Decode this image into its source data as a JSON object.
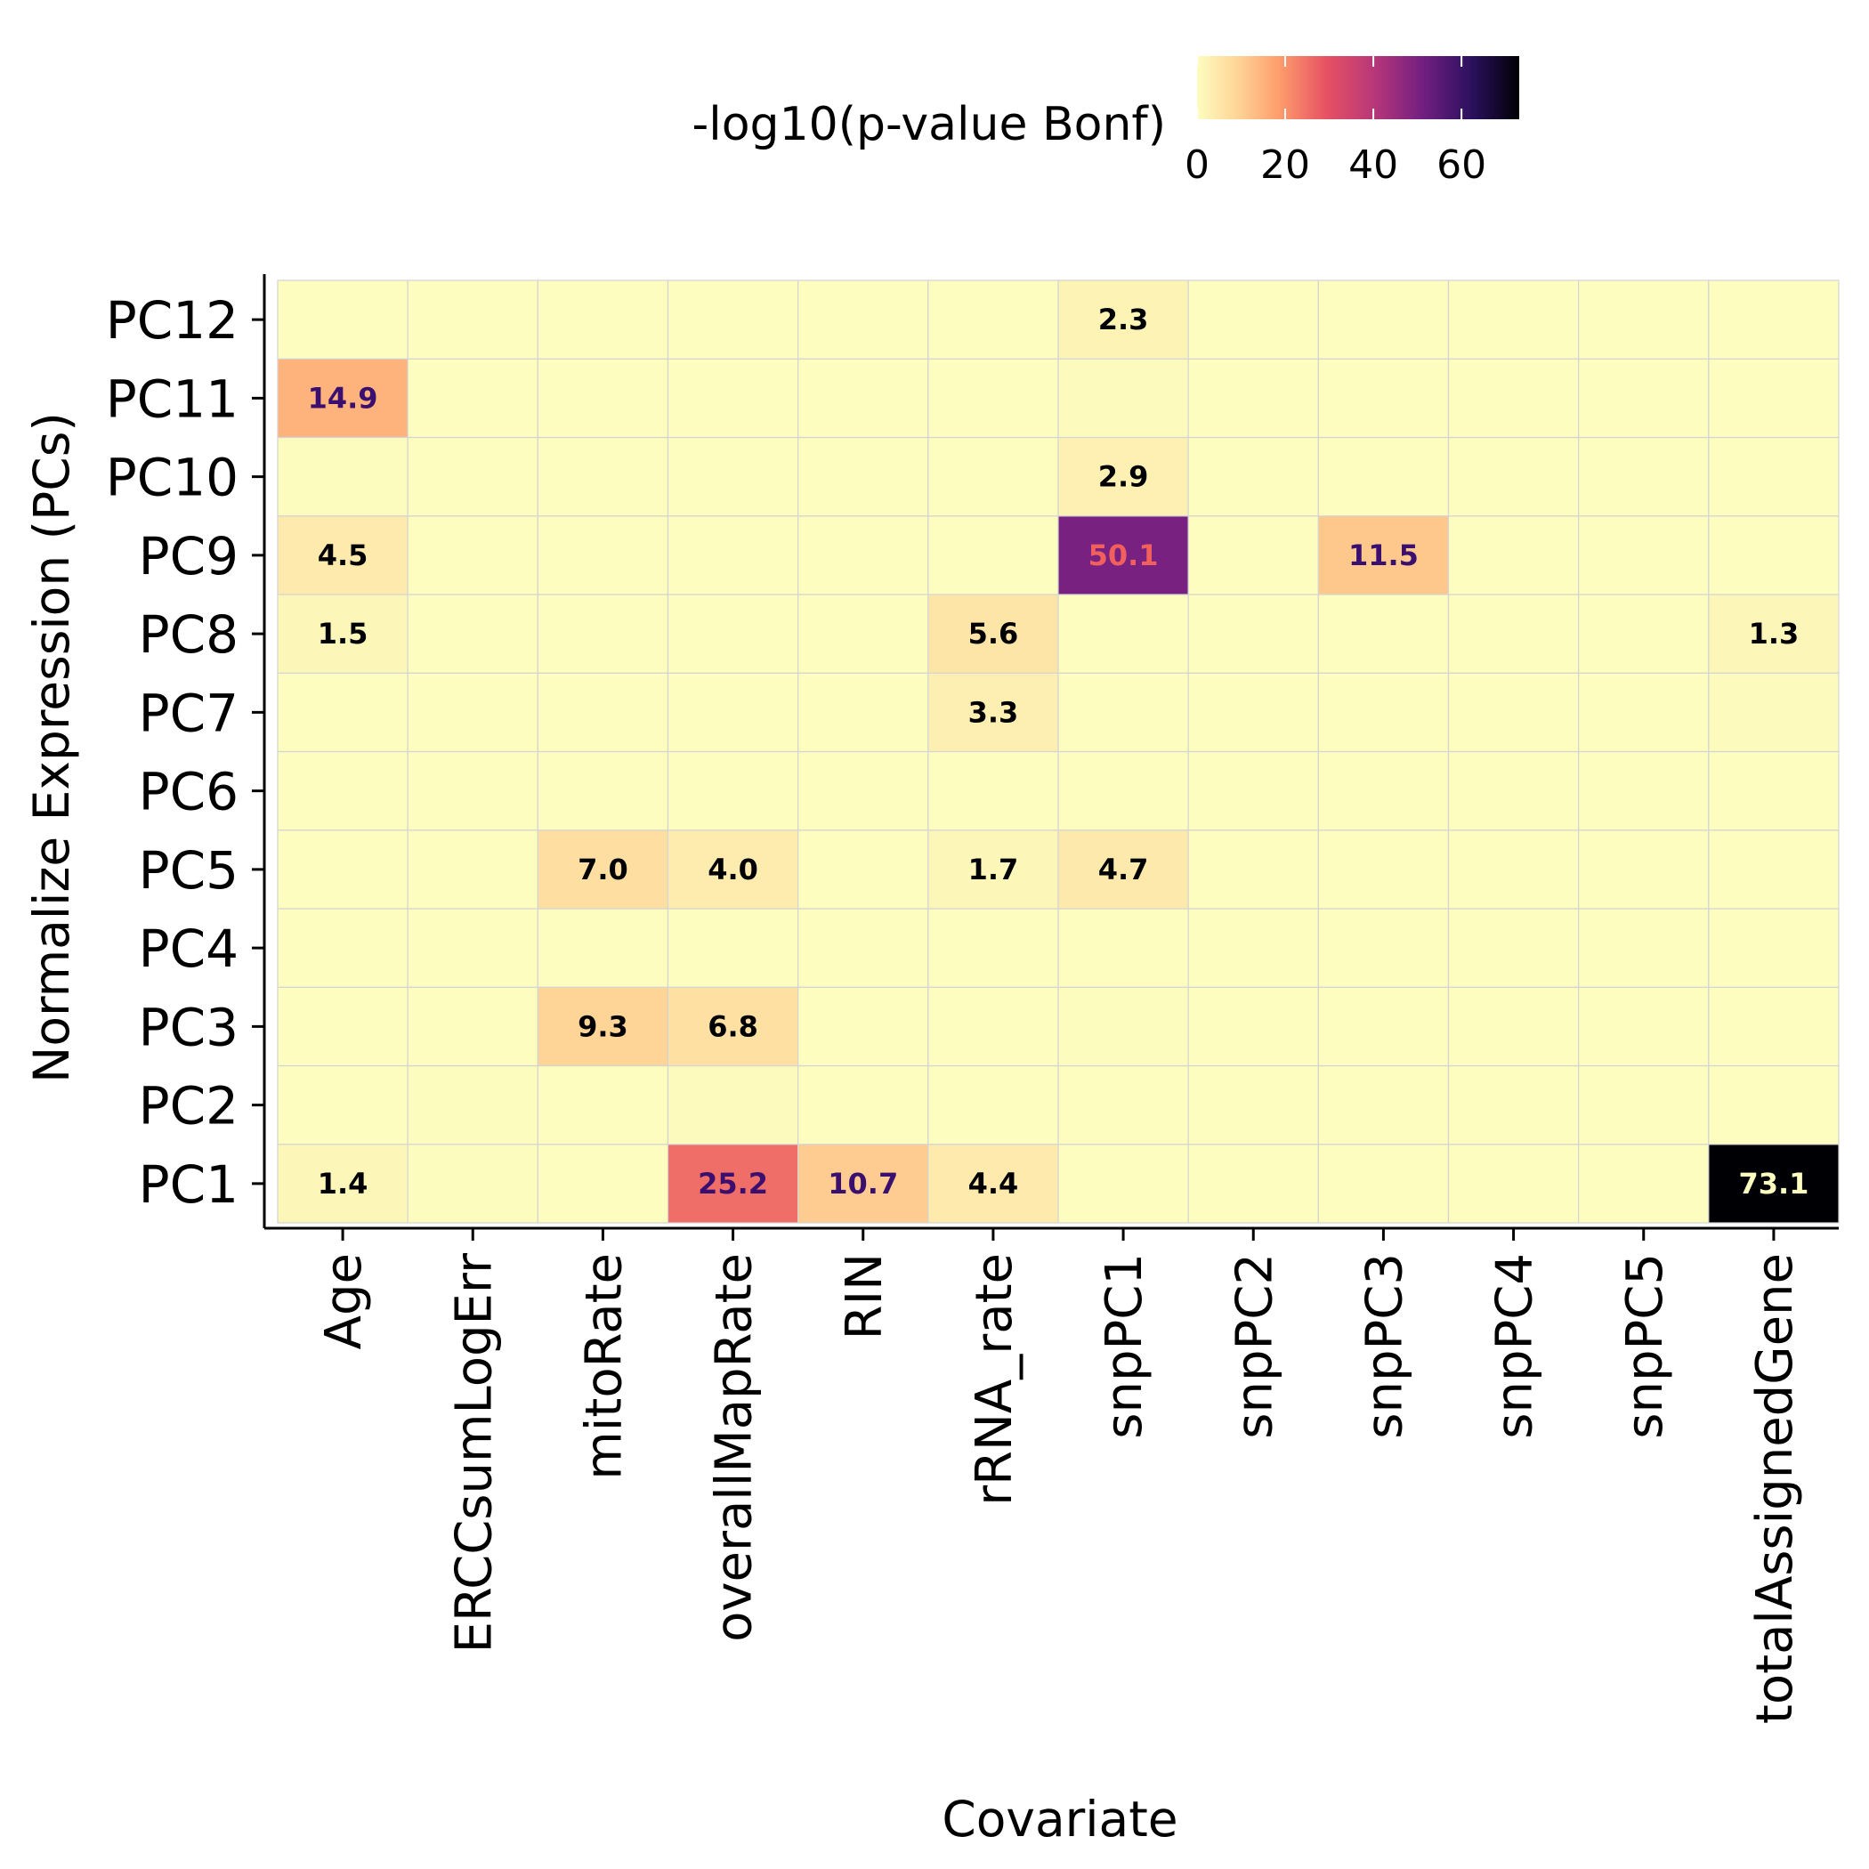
{
  "chart_data": {
    "type": "heatmap",
    "xlabel": "Covariate",
    "ylabel": "Normalize Expression (PCs)",
    "x_categories": [
      "Age",
      "ERCCsumLogErr",
      "mitoRate",
      "overallMapRate",
      "RIN",
      "rRNA_rate",
      "snpPC1",
      "snpPC2",
      "snpPC3",
      "snpPC4",
      "snpPC5",
      "totalAssignedGene"
    ],
    "y_categories": [
      "PC1",
      "PC2",
      "PC3",
      "PC4",
      "PC5",
      "PC6",
      "PC7",
      "PC8",
      "PC9",
      "PC10",
      "PC11",
      "PC12"
    ],
    "values": [
      [
        1.4,
        0.3,
        0,
        25.2,
        10.7,
        4.4,
        0,
        0,
        0,
        0,
        0,
        73.1
      ],
      [
        0,
        0.3,
        0,
        0.6,
        0,
        0,
        0,
        0,
        0,
        0,
        0,
        0
      ],
      [
        0,
        0,
        9.3,
        6.8,
        0,
        0,
        0.3,
        0,
        0,
        0,
        0,
        0
      ],
      [
        0,
        0,
        0,
        0,
        0,
        0,
        0,
        0,
        0,
        0,
        0,
        0
      ],
      [
        0,
        0,
        7.0,
        4.0,
        0,
        1.7,
        4.7,
        0,
        0,
        0,
        0,
        0
      ],
      [
        0,
        0,
        0,
        0,
        0,
        0,
        0,
        0,
        0,
        0,
        0,
        0
      ],
      [
        0,
        0,
        0.1,
        0,
        0,
        3.3,
        0,
        0,
        0,
        0,
        0,
        0.5
      ],
      [
        1.5,
        0,
        0,
        0,
        0,
        5.6,
        0,
        0,
        0,
        0,
        0,
        1.3
      ],
      [
        4.5,
        0,
        0,
        0,
        0,
        0,
        50.1,
        0,
        11.5,
        0,
        0,
        0
      ],
      [
        0.3,
        0,
        0,
        0,
        0,
        0,
        2.9,
        0,
        0,
        0,
        0,
        0
      ],
      [
        14.9,
        0,
        0,
        0,
        0,
        0,
        0.7,
        0,
        0,
        0,
        0,
        0
      ],
      [
        0,
        0,
        0,
        0,
        0,
        0,
        2.3,
        0,
        0,
        0,
        0,
        0
      ]
    ],
    "cell_labels": [
      [
        "1.4",
        "",
        "",
        "25.2",
        "10.7",
        "4.4",
        "",
        "",
        "",
        "",
        "",
        "73.1"
      ],
      [
        "",
        "",
        "",
        "",
        "",
        "",
        "",
        "",
        "",
        "",
        "",
        ""
      ],
      [
        "",
        "",
        "9.3",
        "6.8",
        "",
        "",
        "",
        "",
        "",
        "",
        "",
        ""
      ],
      [
        "",
        "",
        "",
        "",
        "",
        "",
        "",
        "",
        "",
        "",
        "",
        ""
      ],
      [
        "",
        "",
        "7.0",
        "4.0",
        "",
        "1.7",
        "4.7",
        "",
        "",
        "",
        "",
        ""
      ],
      [
        "",
        "",
        "",
        "",
        "",
        "",
        "",
        "",
        "",
        "",
        "",
        ""
      ],
      [
        "",
        "",
        "",
        "",
        "",
        "3.3",
        "",
        "",
        "",
        "",
        "",
        ""
      ],
      [
        "1.5",
        "",
        "",
        "",
        "",
        "5.6",
        "",
        "",
        "",
        "",
        "",
        "1.3"
      ],
      [
        "4.5",
        "",
        "",
        "",
        "",
        "",
        "50.1",
        "",
        "11.5",
        "",
        "",
        ""
      ],
      [
        "",
        "",
        "",
        "",
        "",
        "",
        "2.9",
        "",
        "",
        "",
        "",
        ""
      ],
      [
        "14.9",
        "",
        "",
        "",
        "",
        "",
        "",
        "",
        "",
        "",
        "",
        ""
      ],
      [
        "",
        "",
        "",
        "",
        "",
        "",
        "2.3",
        "",
        "",
        "",
        "",
        ""
      ]
    ],
    "colorbar": {
      "title": "-log10(p-value Bonf)",
      "ticks": [
        "0",
        "20",
        "40",
        "60"
      ],
      "tick_values": [
        0,
        20,
        40,
        60
      ],
      "range": [
        0,
        73.1
      ],
      "colormap": "magma-reversed",
      "placement": "top"
    },
    "grid": true
  }
}
